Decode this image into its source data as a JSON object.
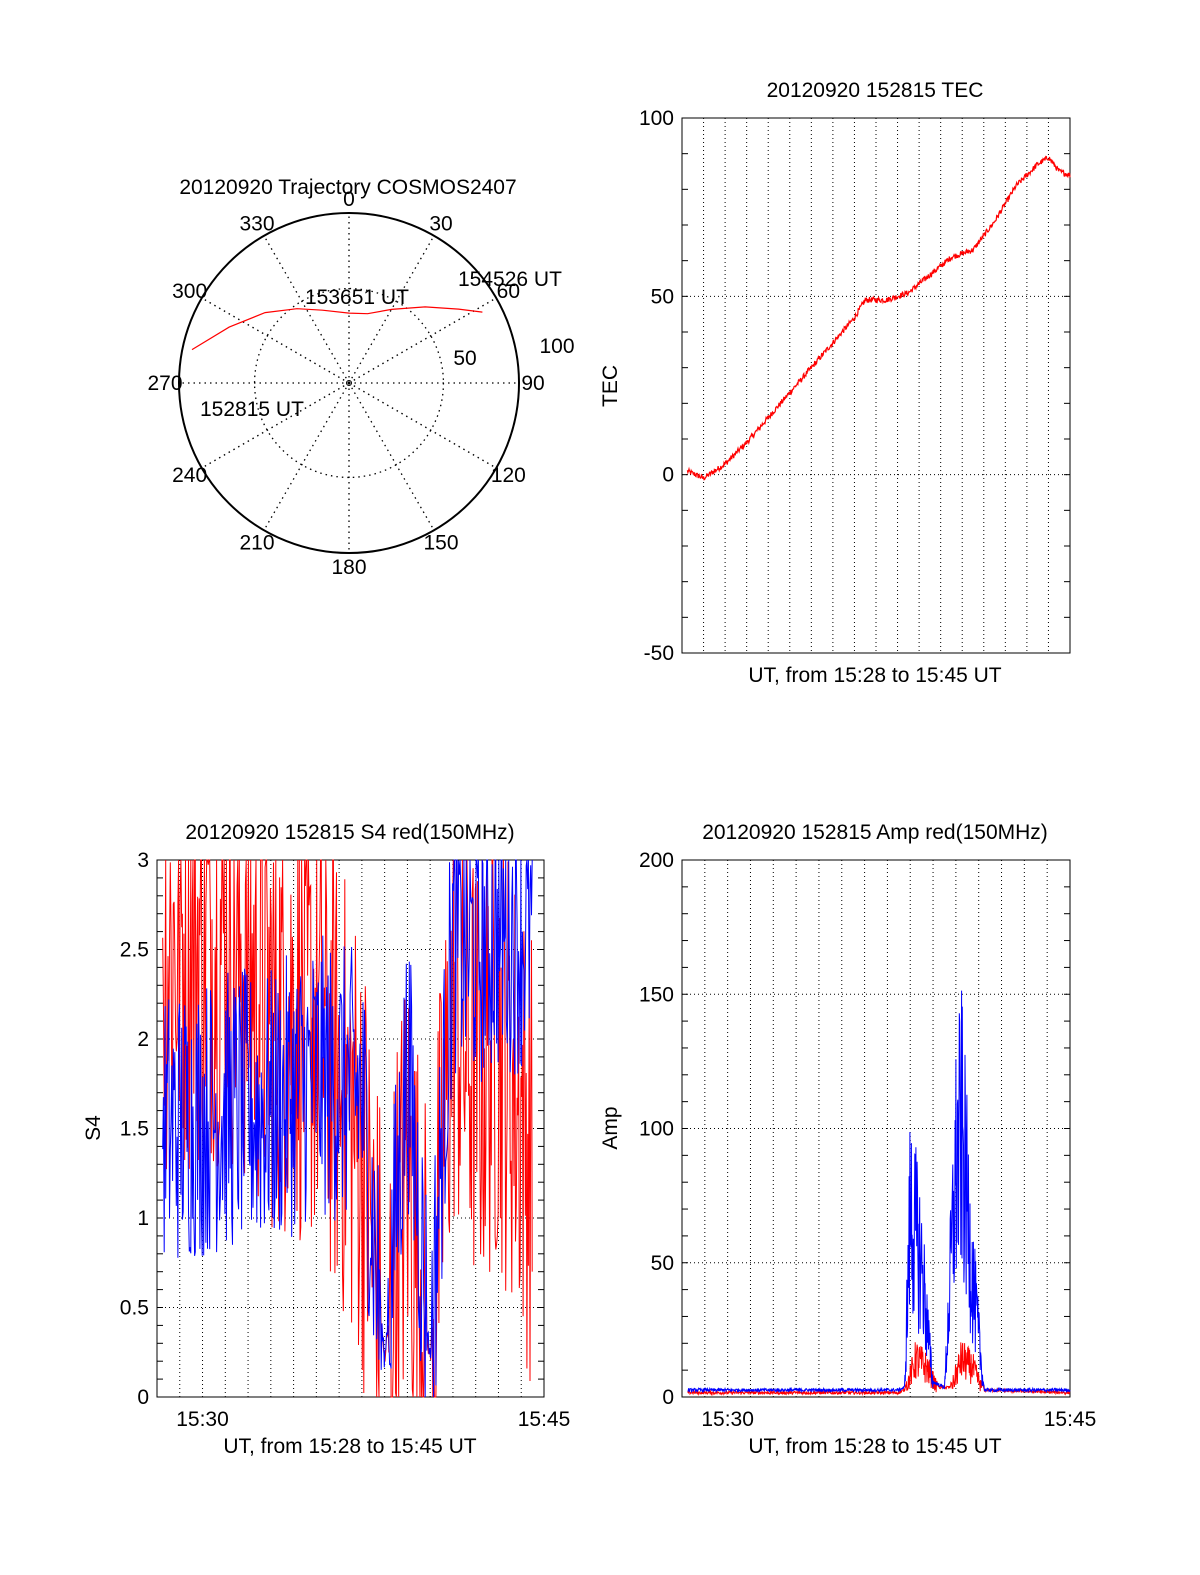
{
  "chart_data": [
    {
      "type": "polar",
      "title": "20120920 Trajectory COSMOS2407",
      "azimuth_ticks": [
        "0",
        "30",
        "60",
        "90",
        "120",
        "150",
        "180",
        "210",
        "240",
        "270",
        "300",
        "330"
      ],
      "ring_labels": [
        "50",
        "100"
      ],
      "series": [
        {
          "color": "#ff0000",
          "points_az_el": [
            [
              282,
              5
            ],
            [
              295,
              20
            ],
            [
              310,
              32
            ],
            [
              325,
              42
            ],
            [
              340,
              49
            ],
            [
              0,
              53
            ],
            [
              15,
              52
            ],
            [
              30,
              45
            ],
            [
              45,
              33
            ],
            [
              56,
              20
            ],
            [
              62,
              10
            ]
          ]
        }
      ],
      "annotations": [
        "152815 UT",
        "153651 UT",
        "154526 UT"
      ]
    },
    {
      "type": "line",
      "title": "20120920 152815 TEC",
      "xlabel": "UT, from 15:28 to 15:45 UT",
      "ylabel": "TEC",
      "xlim": [
        "15:28",
        "15:46"
      ],
      "ylim": [
        -50,
        100
      ],
      "yticks": [
        "-50",
        "0",
        "50",
        "100"
      ],
      "series": [
        {
          "color": "#ff0000",
          "x": [
            "15:28:15",
            "15:29:00",
            "15:30:00",
            "15:31:00",
            "15:32:00",
            "15:33:00",
            "15:34:00",
            "15:35:00",
            "15:36:00",
            "15:36:30",
            "15:37:30",
            "15:38:30",
            "15:39:30",
            "15:40:30",
            "15:41:30",
            "15:42:30",
            "15:43:30",
            "15:44:30",
            "15:45:00",
            "15:45:30",
            "15:46:00"
          ],
          "values": [
            1,
            -1,
            3,
            9,
            16,
            23,
            30,
            37,
            44,
            49,
            49,
            51,
            56,
            61,
            63,
            71,
            81,
            87,
            89,
            85,
            84
          ]
        }
      ]
    },
    {
      "type": "line",
      "title": "20120920 152815 S4 red(150MHz)",
      "xlabel": "UT, from 15:28 to 15:45 UT",
      "ylabel": "S4",
      "xlim": [
        "15:28",
        "15:45"
      ],
      "ylim": [
        0,
        3
      ],
      "yticks": [
        "0",
        "0.5",
        "1",
        "1.5",
        "2",
        "2.5",
        "3"
      ],
      "xticks": [
        "15:30",
        "15:45"
      ],
      "series": [
        {
          "color": "#ff0000",
          "x": [
            "15:28:15",
            "15:31:00",
            "15:33:00",
            "15:35:00",
            "15:37:00",
            "15:38:00",
            "15:39:00",
            "15:40:00",
            "15:41:00",
            "15:42:00",
            "15:43:00",
            "15:44:00",
            "15:44:30"
          ],
          "values": [
            2.5,
            2.6,
            2.2,
            2.1,
            1.4,
            0.2,
            1.3,
            0.2,
            2.2,
            1.8,
            2.0,
            1.6,
            1.3
          ]
        },
        {
          "color": "#0000ff",
          "x": [
            "15:28:15",
            "15:31:00",
            "15:33:00",
            "15:35:00",
            "15:37:00",
            "15:38:00",
            "15:39:00",
            "15:40:00",
            "15:41:00",
            "15:42:00",
            "15:43:00",
            "15:44:00",
            "15:44:30"
          ],
          "values": [
            1.5,
            1.6,
            1.6,
            1.8,
            1.7,
            0.2,
            1.9,
            0.2,
            2.6,
            2.5,
            2.6,
            2.6,
            2.6
          ]
        }
      ]
    },
    {
      "type": "line",
      "title": "20120920 152815 Amp red(150MHz)",
      "xlabel": "UT, from 15:28 to 15:45 UT",
      "ylabel": "Amp",
      "xlim": [
        "15:28",
        "15:45"
      ],
      "ylim": [
        0,
        200
      ],
      "yticks": [
        "0",
        "50",
        "100",
        "150",
        "200"
      ],
      "xticks": [
        "15:30",
        "15:45"
      ],
      "series": [
        {
          "color": "#ff0000",
          "x": [
            "15:28:15",
            "15:37:30",
            "15:37:45",
            "15:38:15",
            "15:38:45",
            "15:39:15",
            "15:39:45",
            "15:40:15",
            "15:40:45",
            "15:41:15",
            "15:45:00"
          ],
          "values": [
            1,
            1,
            2,
            20,
            15,
            3,
            3,
            20,
            15,
            2,
            1
          ]
        },
        {
          "color": "#0000ff",
          "x": [
            "15:28:15",
            "15:37:30",
            "15:37:45",
            "15:38:00",
            "15:38:30",
            "15:39:00",
            "15:39:30",
            "15:40:00",
            "15:40:15",
            "15:40:45",
            "15:41:15",
            "15:45:00"
          ],
          "values": [
            2,
            2,
            3,
            100,
            70,
            5,
            3,
            120,
            140,
            60,
            2,
            2
          ]
        }
      ]
    }
  ]
}
